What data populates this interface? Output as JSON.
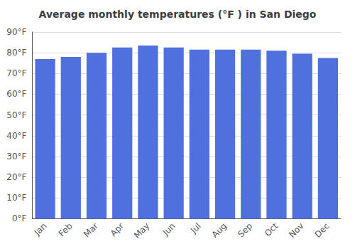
{
  "chart_data": {
    "type": "bar",
    "title": "Average monthly temperatures (°F ) in San Diego",
    "categories": [
      "Jan",
      "Feb",
      "Mar",
      "Apr",
      "May",
      "Jun",
      "Jul",
      "Aug",
      "Sep",
      "Oct",
      "Nov",
      "Dec"
    ],
    "values": [
      77.0,
      78.0,
      80.0,
      82.5,
      83.5,
      82.5,
      81.5,
      81.5,
      81.5,
      81.0,
      79.5,
      77.5
    ],
    "ylim": [
      0,
      90
    ],
    "yticks": [
      {
        "value": 0,
        "label": "0°F"
      },
      {
        "value": 10,
        "label": "10°F"
      },
      {
        "value": 20,
        "label": "20°F"
      },
      {
        "value": 30,
        "label": "30°F"
      },
      {
        "value": 40,
        "label": "40°F"
      },
      {
        "value": 50,
        "label": "50°F"
      },
      {
        "value": 60,
        "label": "60°F"
      },
      {
        "value": 70,
        "label": "70°F"
      },
      {
        "value": 80,
        "label": "80°F"
      },
      {
        "value": 90,
        "label": "90°F"
      }
    ],
    "grid": true
  }
}
